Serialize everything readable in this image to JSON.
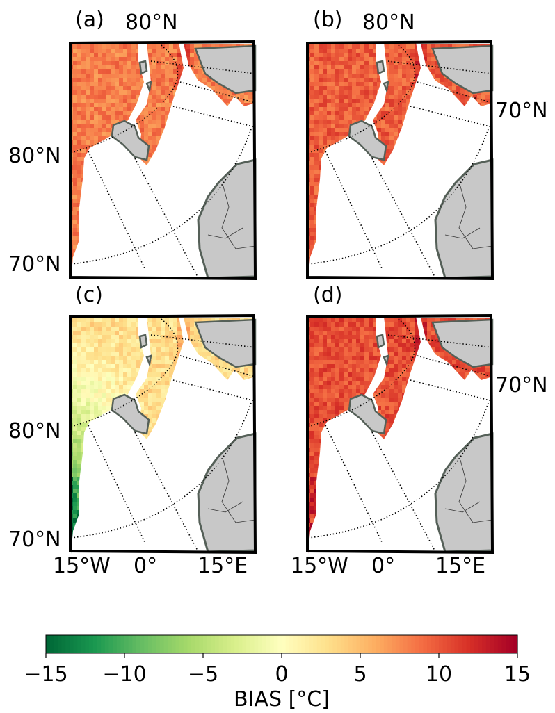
{
  "panels": [
    {
      "label": "(a)",
      "top_lat": "80°N",
      "lat_labels": [
        "80°N",
        "70°N"
      ],
      "right_lat": "",
      "bottom_lon": [],
      "bias": 0.55,
      "greens": false,
      "strong": false
    },
    {
      "label": "(b)",
      "top_lat": "80°N",
      "lat_labels": [],
      "right_lat": "70°N",
      "bottom_lon": [],
      "bias": 0.65,
      "greens": false,
      "strong": false
    },
    {
      "label": "(c)",
      "top_lat": "",
      "lat_labels": [
        "80°N",
        "70°N"
      ],
      "right_lat": "",
      "bottom_lon": [
        "15°W",
        "0°",
        "15°E"
      ],
      "bias": 0.2,
      "greens": true,
      "strong": false
    },
    {
      "label": "(d)",
      "top_lat": "",
      "lat_labels": [],
      "right_lat": "70°N",
      "bottom_lon": [
        "15°W",
        "0°",
        "15°E"
      ],
      "bias": 0.7,
      "greens": false,
      "strong": true
    }
  ],
  "colorbar": {
    "label": "BIAS [°C]",
    "min": -15,
    "max": 15,
    "ticks": [
      "−15",
      "−10",
      "−5",
      "0",
      "5",
      "10",
      "15"
    ],
    "tick_values": [
      -15,
      -10,
      -5,
      0,
      5,
      10,
      15
    ],
    "colormap": [
      "#006837",
      "#1a9850",
      "#66bd63",
      "#a6d96a",
      "#d9ef8b",
      "#ffffbf",
      "#fee08b",
      "#fdae61",
      "#f46d43",
      "#d73027",
      "#a50026"
    ]
  },
  "colors": {
    "land": "#c8c8c8",
    "coast": "#556058",
    "frame": "#000000"
  }
}
